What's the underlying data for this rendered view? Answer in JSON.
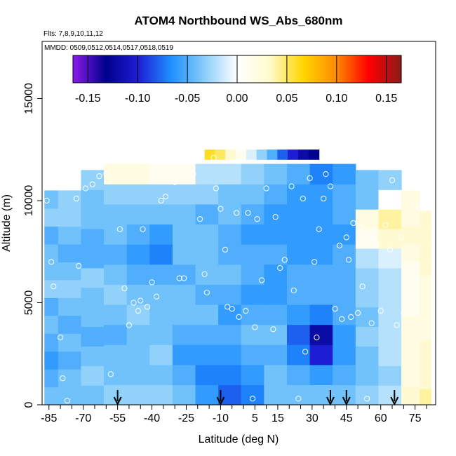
{
  "chart_data": {
    "type": "heatmap",
    "title": "ATOM4 Northbound WS_Abs_680nm",
    "annotations": {
      "flights": "Flts: 7,8,9,10,11,12",
      "dates": "MMDD: 0509,0512,0514,0517,0518,0519"
    },
    "xlabel": "Latitude (deg N)",
    "ylabel": "Altitude (m)",
    "xlim": [
      -88,
      84
    ],
    "ylim": [
      0,
      17800
    ],
    "x_ticks": [
      -85,
      -70,
      -55,
      -40,
      -25,
      -10,
      5,
      15,
      30,
      45,
      60,
      75
    ],
    "x_minor_ticks": [
      -80,
      -75,
      -65,
      -60,
      -50,
      -45,
      -35,
      -30,
      -20,
      -15,
      -5,
      0,
      10,
      20,
      25,
      35,
      40,
      50,
      55,
      65,
      70,
      80
    ],
    "y_ticks": [
      0,
      5000,
      10000,
      15000
    ],
    "colorbar": {
      "min": -0.165,
      "max": 0.165,
      "ticks": [
        -0.15,
        -0.1,
        -0.05,
        0.0,
        0.05,
        0.1,
        0.15
      ],
      "tick_labels": [
        "-0.15",
        "-0.10",
        "-0.05",
        "0.00",
        "0.05",
        "0.10",
        "0.15"
      ],
      "colors": [
        "#8B1AE8",
        "#00008B",
        "#1E1ED6",
        "#1E90FF",
        "#87CEFA",
        "#FFFFFF",
        "#FFFACD",
        "#FFD700",
        "#FF8C00",
        "#FF0000",
        "#8B1A1A"
      ]
    },
    "top_band": {
      "x_range": [
        -17,
        33
      ],
      "alt_range": [
        12000,
        12500
      ],
      "values": [
        0.06,
        0.05,
        0.03,
        0.01,
        -0.01,
        -0.03,
        -0.05,
        -0.08,
        -0.1,
        -0.12,
        -0.13
      ]
    },
    "field_columns": [
      {
        "lat": -86,
        "top": 10500,
        "profile": [
          -0.04,
          -0.05,
          -0.06,
          -0.05,
          -0.04,
          -0.05,
          -0.03,
          -0.04,
          -0.04,
          -0.05,
          -0.03,
          -0.04
        ]
      },
      {
        "lat": -76,
        "top": 10500,
        "profile": [
          -0.04,
          -0.04,
          -0.05,
          -0.04,
          -0.05,
          -0.04,
          -0.03,
          -0.04,
          -0.05,
          -0.04,
          -0.03,
          -0.03
        ]
      },
      {
        "lat": -66,
        "top": 11500,
        "profile": [
          -0.04,
          -0.03,
          -0.04,
          -0.05,
          -0.04,
          -0.04,
          -0.03,
          -0.05,
          -0.05,
          -0.04,
          -0.04,
          -0.03
        ]
      },
      {
        "lat": -56,
        "top": 11800,
        "profile": [
          -0.03,
          -0.04,
          -0.04,
          -0.05,
          -0.04,
          -0.03,
          -0.04,
          -0.05,
          -0.04,
          -0.04,
          -0.03,
          0.02
        ]
      },
      {
        "lat": -46,
        "top": 11800,
        "profile": [
          -0.03,
          -0.04,
          -0.04,
          -0.04,
          -0.03,
          -0.04,
          -0.05,
          -0.06,
          -0.05,
          -0.04,
          -0.03,
          0.02
        ]
      },
      {
        "lat": -36,
        "top": 11800,
        "profile": [
          -0.03,
          -0.04,
          -0.03,
          -0.04,
          -0.04,
          -0.04,
          -0.05,
          -0.07,
          -0.06,
          -0.04,
          -0.03,
          0.01
        ]
      },
      {
        "lat": -26,
        "top": 11800,
        "profile": [
          -0.04,
          -0.05,
          -0.06,
          -0.05,
          -0.04,
          -0.04,
          -0.05,
          -0.04,
          -0.04,
          -0.04,
          -0.03,
          0.01
        ]
      },
      {
        "lat": -16,
        "top": 11800,
        "profile": [
          -0.06,
          -0.07,
          -0.06,
          -0.05,
          -0.04,
          -0.05,
          -0.04,
          -0.04,
          -0.04,
          -0.05,
          -0.03,
          -0.02
        ]
      },
      {
        "lat": -6,
        "top": 11800,
        "profile": [
          -0.08,
          -0.07,
          -0.06,
          -0.05,
          -0.06,
          -0.05,
          -0.04,
          -0.05,
          -0.05,
          -0.04,
          -0.04,
          -0.02
        ]
      },
      {
        "lat": 4,
        "top": 11800,
        "profile": [
          -0.07,
          -0.06,
          -0.05,
          -0.04,
          -0.05,
          -0.06,
          -0.05,
          -0.05,
          -0.06,
          -0.05,
          -0.04,
          -0.03
        ]
      },
      {
        "lat": 14,
        "top": 11800,
        "profile": [
          -0.04,
          -0.04,
          -0.05,
          -0.04,
          -0.05,
          -0.06,
          -0.06,
          -0.05,
          -0.06,
          -0.06,
          -0.05,
          -0.04
        ]
      },
      {
        "lat": 24,
        "top": 11800,
        "profile": [
          -0.04,
          -0.05,
          -0.07,
          -0.08,
          -0.06,
          -0.05,
          -0.05,
          -0.06,
          -0.06,
          -0.06,
          -0.06,
          -0.05
        ]
      },
      {
        "lat": 34,
        "top": 11800,
        "profile": [
          -0.04,
          -0.06,
          -0.1,
          -0.12,
          -0.07,
          -0.05,
          -0.05,
          -0.06,
          -0.06,
          -0.06,
          -0.06,
          -0.07
        ]
      },
      {
        "lat": 44,
        "top": 11800,
        "profile": [
          -0.04,
          -0.05,
          -0.06,
          -0.06,
          -0.05,
          -0.05,
          -0.05,
          -0.05,
          -0.06,
          -0.05,
          -0.05,
          -0.06
        ]
      },
      {
        "lat": 54,
        "top": 11500,
        "profile": [
          -0.03,
          -0.04,
          -0.04,
          -0.03,
          -0.04,
          -0.03,
          -0.03,
          -0.02,
          0.01,
          0.02,
          -0.04,
          -0.04
        ]
      },
      {
        "lat": 64,
        "top": 11500,
        "profile": [
          -0.02,
          -0.03,
          -0.02,
          -0.02,
          -0.02,
          -0.02,
          -0.02,
          -0.01,
          0.03,
          0.04,
          0.0,
          -0.03
        ]
      },
      {
        "lat": 74,
        "top": 10500,
        "profile": [
          0.03,
          0.02,
          0.02,
          0.02,
          0.02,
          0.01,
          0.01,
          0.01,
          0.02,
          0.03,
          0.02,
          0.02
        ]
      },
      {
        "lat": 80,
        "top": 9500,
        "profile": [
          0.04,
          0.03,
          0.03,
          0.03,
          0.02,
          0.02,
          0.02,
          0.02,
          0.03,
          0.03,
          0.03,
          0.03
        ]
      }
    ],
    "observations": [
      [
        -86,
        10000
      ],
      [
        -84,
        7000
      ],
      [
        -83,
        5800
      ],
      [
        -80,
        3300
      ],
      [
        -79,
        1300
      ],
      [
        -77,
        200
      ],
      [
        -73,
        10100
      ],
      [
        -72,
        6800
      ],
      [
        -69,
        10600
      ],
      [
        -66,
        10800
      ],
      [
        -63,
        11200
      ],
      [
        -60,
        11300
      ],
      [
        -58,
        1500
      ],
      [
        -54,
        8600
      ],
      [
        -52,
        5700
      ],
      [
        -50,
        3900
      ],
      [
        -48,
        5000
      ],
      [
        -46,
        4600
      ],
      [
        -45,
        5100
      ],
      [
        -44,
        8600
      ],
      [
        -42,
        4800
      ],
      [
        -40,
        6000
      ],
      [
        -38,
        5300
      ],
      [
        -36,
        10000
      ],
      [
        -34,
        10200
      ],
      [
        -30,
        10900
      ],
      [
        -28,
        6200
      ],
      [
        -26,
        6200
      ],
      [
        -22,
        11300
      ],
      [
        -19,
        9100
      ],
      [
        -17,
        6400
      ],
      [
        -16,
        5500
      ],
      [
        -13,
        12100
      ],
      [
        -12,
        10600
      ],
      [
        -10,
        9600
      ],
      [
        -8,
        7600
      ],
      [
        -7,
        4800
      ],
      [
        -5,
        4700
      ],
      [
        -3,
        9400
      ],
      [
        -2,
        4300
      ],
      [
        1,
        4600
      ],
      [
        2,
        9400
      ],
      [
        4,
        300
      ],
      [
        5,
        3800
      ],
      [
        6,
        9100
      ],
      [
        8,
        6100
      ],
      [
        10,
        10600
      ],
      [
        13,
        3700
      ],
      [
        14,
        9200
      ],
      [
        16,
        6700
      ],
      [
        18,
        7100
      ],
      [
        21,
        10700
      ],
      [
        22,
        5600
      ],
      [
        24,
        300
      ],
      [
        26,
        10100
      ],
      [
        27,
        2600
      ],
      [
        29,
        11100
      ],
      [
        31,
        7000
      ],
      [
        32,
        3300
      ],
      [
        33,
        8600
      ],
      [
        35,
        10100
      ],
      [
        36,
        11300
      ],
      [
        38,
        10700
      ],
      [
        40,
        4700
      ],
      [
        42,
        7800
      ],
      [
        43,
        4200
      ],
      [
        45,
        8200
      ],
      [
        46,
        7100
      ],
      [
        47,
        4300
      ],
      [
        48,
        8900
      ],
      [
        50,
        4500
      ],
      [
        51,
        8700
      ],
      [
        52,
        5800
      ],
      [
        54,
        300
      ],
      [
        55,
        8100
      ],
      [
        56,
        4000
      ],
      [
        57,
        8200
      ],
      [
        58,
        7800
      ],
      [
        60,
        4600
      ],
      [
        62,
        8800
      ],
      [
        64,
        7600
      ],
      [
        65,
        11000
      ],
      [
        66,
        10300
      ],
      [
        67,
        3900
      ],
      [
        69,
        8200
      ],
      [
        70,
        4500
      ],
      [
        72,
        10600
      ],
      [
        73,
        5200
      ],
      [
        75,
        9700
      ],
      [
        77,
        9600
      ]
    ],
    "arrows_lat": [
      -55,
      -10,
      38,
      45,
      66
    ]
  }
}
